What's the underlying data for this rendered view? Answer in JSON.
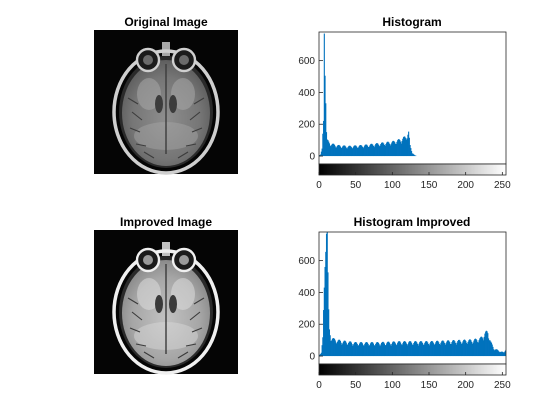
{
  "figure": {
    "panels": {
      "original_image": {
        "title": "Original Image"
      },
      "histogram": {
        "title": "Histogram"
      },
      "improved_image": {
        "title": "Improved Image"
      },
      "histogram_improved": {
        "title": "Histogram Improved"
      }
    }
  },
  "colors": {
    "bar": "#0072BD",
    "axes": "#262626",
    "background": "#ffffff"
  },
  "chart_data": [
    {
      "type": "bar",
      "title": "Histogram",
      "xlabel": "",
      "ylabel": "",
      "xlim": [
        0,
        255
      ],
      "ylim": [
        -50,
        780
      ],
      "xticks": [
        0,
        50,
        100,
        150,
        200,
        250
      ],
      "yticks": [
        0,
        200,
        400,
        600
      ],
      "grid": false,
      "colorbar": "grayscale 0-255 below x-axis",
      "profile": [
        [
          0,
          5
        ],
        [
          2,
          10
        ],
        [
          4,
          40
        ],
        [
          6,
          200
        ],
        [
          7,
          780
        ],
        [
          8,
          600
        ],
        [
          9,
          350
        ],
        [
          10,
          140
        ],
        [
          11,
          90
        ],
        [
          13,
          80
        ],
        [
          16,
          70
        ],
        [
          25,
          60
        ],
        [
          40,
          55
        ],
        [
          60,
          60
        ],
        [
          80,
          70
        ],
        [
          100,
          80
        ],
        [
          112,
          95
        ],
        [
          118,
          110
        ],
        [
          122,
          135
        ],
        [
          124,
          60
        ],
        [
          127,
          20
        ],
        [
          130,
          5
        ],
        [
          133,
          0
        ],
        [
          255,
          0
        ]
      ]
    },
    {
      "type": "bar",
      "title": "Histogram Improved",
      "xlabel": "",
      "ylabel": "",
      "xlim": [
        0,
        255
      ],
      "ylim": [
        -50,
        780
      ],
      "xticks": [
        0,
        50,
        100,
        150,
        200,
        250
      ],
      "yticks": [
        0,
        200,
        400,
        600
      ],
      "grid": false,
      "colorbar": "grayscale 0-255 below x-axis",
      "profile": [
        [
          0,
          5
        ],
        [
          3,
          20
        ],
        [
          5,
          100
        ],
        [
          7,
          400
        ],
        [
          9,
          780
        ],
        [
          11,
          780
        ],
        [
          12,
          450
        ],
        [
          13,
          250
        ],
        [
          14,
          150
        ],
        [
          16,
          110
        ],
        [
          20,
          95
        ],
        [
          30,
          85
        ],
        [
          50,
          75
        ],
        [
          80,
          75
        ],
        [
          110,
          80
        ],
        [
          150,
          80
        ],
        [
          180,
          85
        ],
        [
          210,
          90
        ],
        [
          220,
          100
        ],
        [
          226,
          130
        ],
        [
          230,
          140
        ],
        [
          234,
          80
        ],
        [
          238,
          45
        ],
        [
          245,
          30
        ],
        [
          252,
          20
        ],
        [
          254,
          40
        ],
        [
          255,
          40
        ]
      ]
    }
  ]
}
